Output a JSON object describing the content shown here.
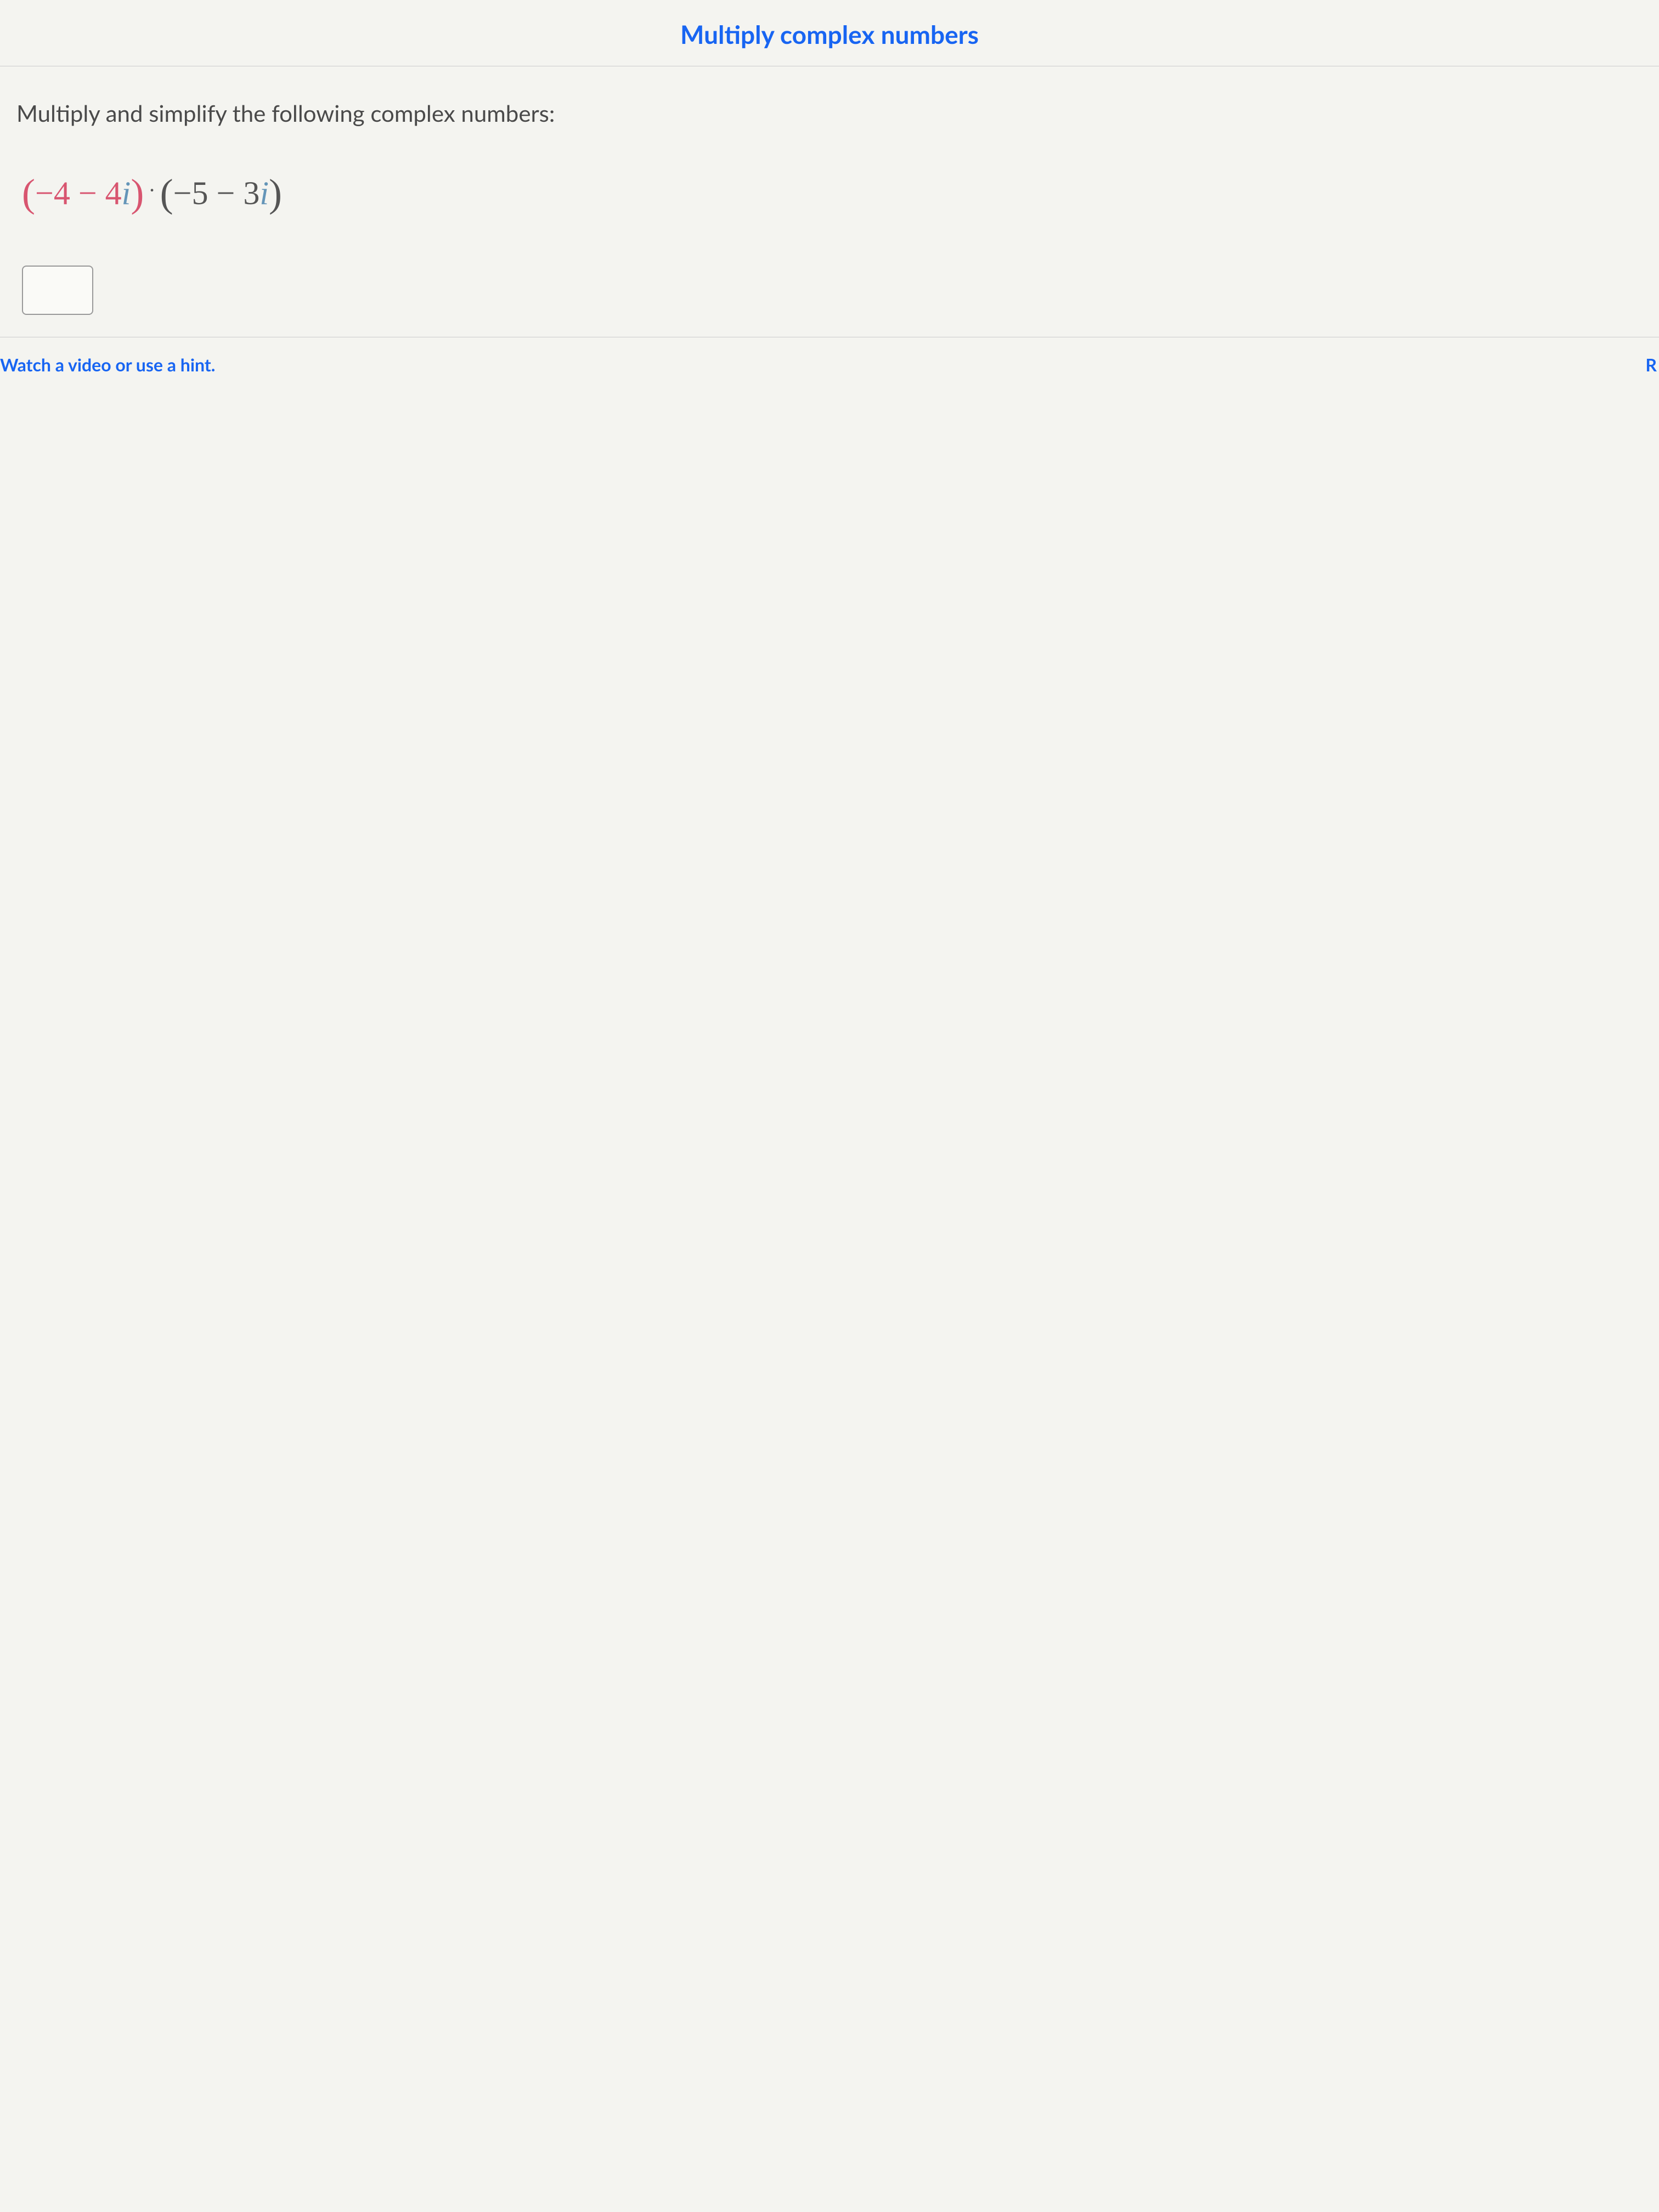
{
  "header": {
    "title": "Multiply complex numbers"
  },
  "problem": {
    "instruction": "Multiply and simplify the following complex numbers:",
    "expression": {
      "first_open_paren": "(",
      "first_real": "−4",
      "first_op": " − ",
      "first_imag_coef": "4",
      "first_imag_i": "i",
      "first_close_paren": ")",
      "dot": "·",
      "second_open_paren": "(",
      "second_real": "−5",
      "second_op": " − ",
      "second_imag_coef": "3",
      "second_imag_i": "i",
      "second_close_paren": ")"
    },
    "answer_value": ""
  },
  "footer": {
    "hint_text": "Watch a video or use a hint.",
    "right_char": "R"
  },
  "colors": {
    "link_blue": "#1865f2",
    "text_gray": "#4a4a4a",
    "expr_gray": "#555",
    "highlight_pink": "#d85570",
    "i_blue": "#6495b8",
    "background": "#f4f4f0",
    "border": "#ccc"
  }
}
